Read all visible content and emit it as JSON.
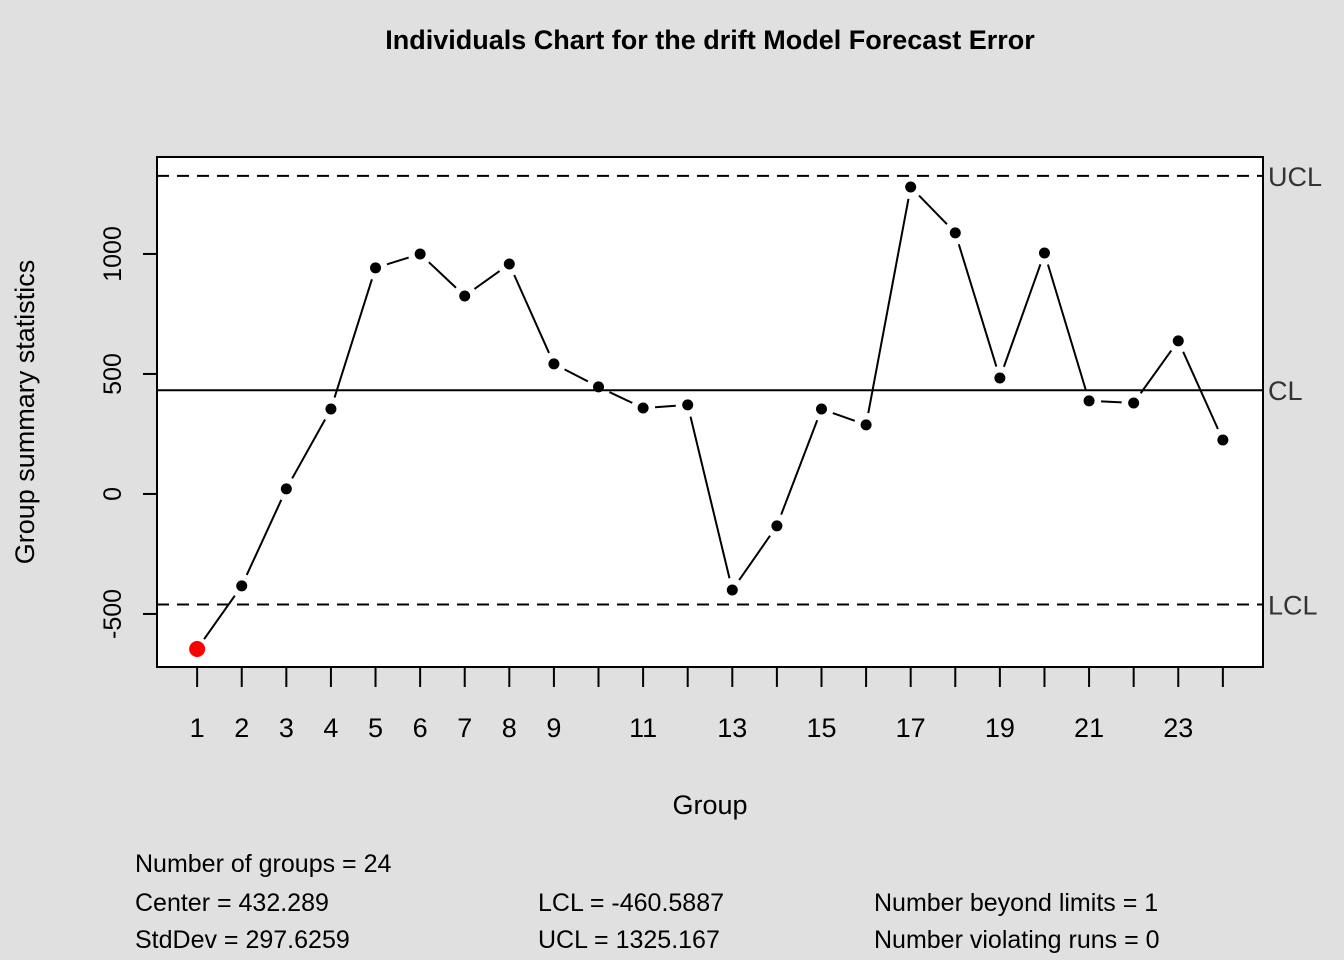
{
  "chart_data": {
    "type": "line",
    "title": "Individuals Chart for the drift Model Forecast Error",
    "xlabel": "Group",
    "ylabel": "Group summary statistics",
    "x": [
      1,
      2,
      3,
      4,
      5,
      6,
      7,
      8,
      9,
      10,
      11,
      12,
      13,
      14,
      15,
      16,
      17,
      18,
      19,
      20,
      21,
      22,
      23,
      24
    ],
    "values": [
      -646,
      -383,
      21,
      354,
      942,
      1000,
      825,
      958,
      542,
      446,
      358,
      371,
      -400,
      -133,
      354,
      288,
      1279,
      1088,
      483,
      1004,
      388,
      379,
      638,
      225
    ],
    "beyond_limits_index": [
      1
    ],
    "x_tick_labels": [
      "1",
      "2",
      "3",
      "4",
      "5",
      "6",
      "7",
      "8",
      "9",
      "11",
      "13",
      "15",
      "17",
      "19",
      "21",
      "23"
    ],
    "y_ticks": [
      -500,
      0,
      500,
      1000
    ],
    "y_tick_labels": [
      "-500",
      "0",
      "500",
      "1000"
    ],
    "ylim": [
      -721,
      1404
    ],
    "xlim": [
      0.1,
      24.9
    ],
    "limits": [
      {
        "label": "UCL",
        "value": 1325.167,
        "style": "dashed"
      },
      {
        "label": "CL",
        "value": 432.289,
        "style": "solid"
      },
      {
        "label": "LCL",
        "value": -460.5887,
        "style": "dashed"
      }
    ],
    "point_color": "#000000",
    "violation_color": "#ff0000",
    "grid": false
  },
  "stats": {
    "groups": "Number of groups = 24",
    "center": "Center = 432.289",
    "stddev": "StdDev = 297.6259",
    "lcl": "LCL = -460.5887",
    "ucl": "UCL = 1325.167",
    "beyond": "Number beyond limits = 1",
    "runs": "Number violating runs = 0"
  }
}
